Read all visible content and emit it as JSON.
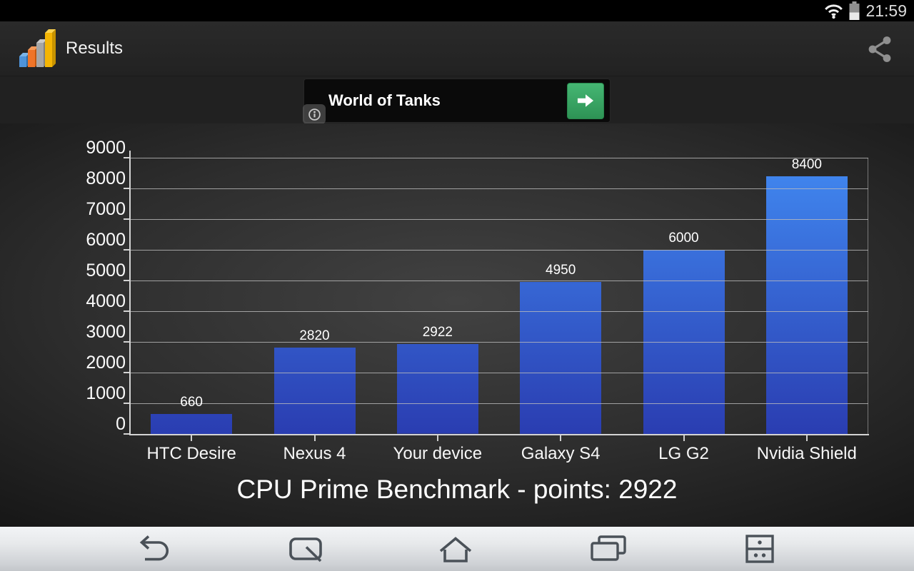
{
  "status_bar": {
    "time": "21:59",
    "icons": [
      "wifi-icon",
      "battery-icon"
    ],
    "battery_level_percent": 45
  },
  "app_bar": {
    "title": "Results",
    "icons": [
      "bar-chart-app-icon",
      "share-icon"
    ]
  },
  "ad_banner": {
    "title": "World of Tanks",
    "icons": [
      "info-icon",
      "arrow-right-icon"
    ],
    "cta_color": "#3aa865"
  },
  "chart_data": {
    "type": "bar",
    "title": "CPU Prime Benchmark - points: 2922",
    "categories": [
      "HTC Desire",
      "Nexus 4",
      "Your device",
      "Galaxy S4",
      "LG G2",
      "Nvidia Shield"
    ],
    "values": [
      660,
      2820,
      2922,
      4950,
      6000,
      8400
    ],
    "xlabel": "",
    "ylabel": "",
    "ylim": [
      0,
      9000
    ],
    "ytick_step": 1000,
    "yticks": [
      0,
      1000,
      2000,
      3000,
      4000,
      5000,
      6000,
      7000,
      8000,
      9000
    ],
    "grid": true,
    "legend": false,
    "value_labels_shown": true,
    "colors": {
      "bar_top": "#4189f1",
      "bar_bottom": "#2a3db1",
      "axis": "#d4d4d4",
      "grid": "#bdbdbd",
      "text": "#ffffff"
    }
  },
  "nav_bar": {
    "icons": [
      "back-icon",
      "qslide-icon",
      "home-icon",
      "recents-icon",
      "dual-window-icon"
    ]
  }
}
